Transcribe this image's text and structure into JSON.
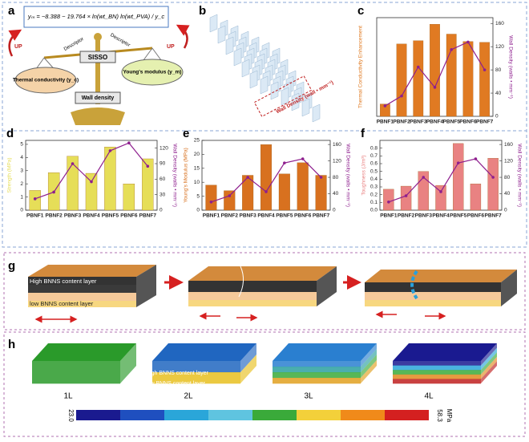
{
  "panel_a": {
    "letter": "a",
    "equation": "yₘ = −8.388 − 19.764 × ln(wt_BN) ln(wt_PVA) / y_c",
    "center": "SISSO",
    "descriptor_left": "Descriptor",
    "descriptor_right": "Descriptor",
    "left": "Thermal conductivity (y_c)",
    "right": "Young's modulus (y_m)",
    "bottom": "Wall density",
    "up_left": "UP",
    "up_right": "UP"
  },
  "panel_b": {
    "letter": "b",
    "axis_label": "Wall Density (wall • mm⁻¹)"
  },
  "chart_data": [
    {
      "type": "bar",
      "label": "c",
      "ylabel": "Thermal Conductivity Enhancement",
      "y2label": "Wall Density (walls • mm⁻¹)",
      "categories": [
        "PBNF1",
        "PBNF2",
        "PBNF3",
        "PBNF4",
        "PBNF5",
        "PBNF6",
        "PBNF7"
      ],
      "ylim": [
        0,
        120
      ],
      "y2lim": [
        0,
        170
      ],
      "y2ticks": [
        0,
        40,
        80,
        120,
        160
      ],
      "series": [
        {
          "color": "#e07a22",
          "values": [
            15,
            88,
            92,
            112,
            100,
            91,
            90
          ]
        },
        {
          "color": "#8e1f8e",
          "axis": "y2",
          "values": [
            18,
            35,
            85,
            50,
            115,
            128,
            80
          ]
        }
      ]
    },
    {
      "type": "bar",
      "label": "d",
      "ylabel": "Strength (MPa)",
      "y2label": "Wall Density (walls • mm⁻¹)",
      "categories": [
        "PBNF1",
        "PBNF2",
        "PBNF3",
        "PBNF4",
        "PBNF5",
        "PBNF6",
        "PBNF7"
      ],
      "ylim": [
        0,
        5.3
      ],
      "yticks": [
        0,
        1,
        2,
        3,
        4,
        5
      ],
      "y2lim": [
        0,
        135
      ],
      "y2ticks": [
        0,
        30,
        60,
        90,
        120
      ],
      "series": [
        {
          "color": "#e6de58",
          "values": [
            1.5,
            2.85,
            4.1,
            2.8,
            4.8,
            2.0,
            3.9
          ]
        },
        {
          "color": "#8e1f8e",
          "axis": "y2",
          "values": [
            22,
            35,
            90,
            55,
            115,
            130,
            85
          ]
        }
      ]
    },
    {
      "type": "bar",
      "label": "e",
      "ylabel": "Young's Modulus (MPa)",
      "y2label": "Wall Density (walls • mm⁻¹)",
      "categories": [
        "PBNF1",
        "PBNF2",
        "PBNF3",
        "PBNF4",
        "PBNF5",
        "PBNF6",
        "PBNF7"
      ],
      "ylim": [
        0,
        25
      ],
      "yticks": [
        0,
        5,
        10,
        15,
        20,
        25
      ],
      "y2lim": [
        0,
        170
      ],
      "y2ticks": [
        0,
        40,
        80,
        120,
        160
      ],
      "series": [
        {
          "color": "#d8711f",
          "values": [
            9,
            7,
            12.5,
            23.5,
            13,
            17,
            12.5
          ]
        },
        {
          "color": "#8e1f8e",
          "axis": "y2",
          "values": [
            20,
            35,
            80,
            45,
            115,
            125,
            80
          ]
        }
      ]
    },
    {
      "type": "bar",
      "label": "f",
      "ylabel": "Toughness (J/m³)",
      "y2label": "Wall Density (walls • mm⁻¹)",
      "categories": [
        "PBNF1",
        "PBNF2",
        "PBNF3",
        "PBNF4",
        "PBNF5",
        "PBNF6",
        "PBNF7"
      ],
      "ylim": [
        0,
        0.9
      ],
      "yticks": [
        {
          "value": 0,
          "label": "0.0"
        },
        0.1,
        0.2,
        0.3,
        0.4,
        0.5,
        0.6,
        0.7,
        0.8
      ],
      "y2lim": [
        0,
        170
      ],
      "y2ticks": [
        0,
        40,
        80,
        120,
        160
      ],
      "series": [
        {
          "color": "#e98282",
          "values": [
            0.27,
            0.31,
            0.5,
            0.32,
            0.86,
            0.34,
            0.67
          ]
        },
        {
          "color": "#8e1f8e",
          "axis": "y2",
          "values": [
            20,
            35,
            80,
            45,
            115,
            125,
            80
          ]
        }
      ]
    }
  ],
  "panel_g": {
    "letter": "g",
    "top_layer": "High BNNS content layer",
    "bottom_layer": "low BNNS content layer"
  },
  "panel_h": {
    "letter": "h",
    "top_layer": "High BNNS content layer",
    "bottom_layer": "low BNNS content layer",
    "samples": [
      "1L",
      "2L",
      "3L",
      "4L"
    ],
    "colorbar": {
      "min": "23.0",
      "max": "58.3",
      "unit": "MPa"
    }
  }
}
